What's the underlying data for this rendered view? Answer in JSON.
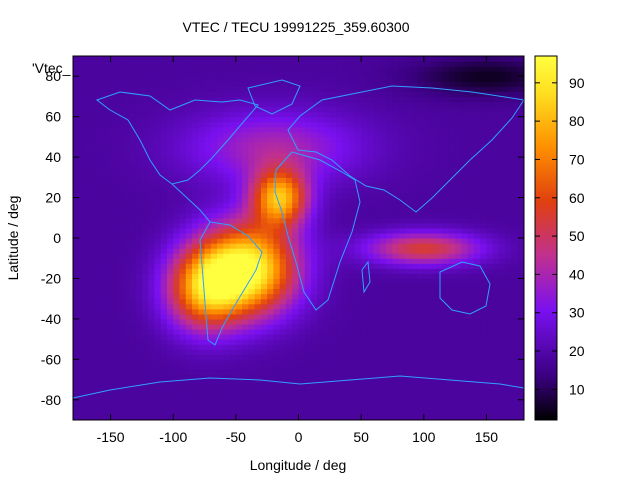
{
  "chart_data": {
    "type": "heatmap",
    "title": "VTEC / TECU 19991225_359.60300",
    "xlabel": "Longitude / deg",
    "ylabel": "Latitude / deg",
    "xlim": [
      -180,
      180
    ],
    "ylim": [
      -90,
      90
    ],
    "x_ticks": [
      -150,
      -100,
      -50,
      0,
      50,
      100,
      150
    ],
    "y_ticks": [
      -80,
      -60,
      -40,
      -20,
      0,
      20,
      40,
      60,
      80
    ],
    "colorbar": {
      "range": [
        2,
        97
      ],
      "ticks": [
        10,
        20,
        30,
        40,
        50,
        60,
        70,
        80,
        90
      ],
      "palette_stops": [
        "#000000",
        "#3a0080",
        "#7a10f0",
        "#c03090",
        "#e04010",
        "#ff9000",
        "#ffe020",
        "#ffff40"
      ]
    },
    "legend_label": "'Vtec_",
    "background_level": 18,
    "features": [
      {
        "name": "main crest (South Atlantic)",
        "lon": -40,
        "lat": -15,
        "value": 95
      },
      {
        "name": "northern crest (Atlantic)",
        "lon": -15,
        "lat": 20,
        "value": 78
      },
      {
        "name": "Pacific/Americas crest",
        "lon": -75,
        "lat": -25,
        "value": 72
      },
      {
        "name": "Indian Ocean band",
        "lon": 100,
        "lat": -5,
        "value": 55
      },
      {
        "name": "mid-latitude northern halo",
        "lon": -20,
        "lat": 45,
        "value": 40
      },
      {
        "name": "polar night (north)",
        "lon": 150,
        "lat": 80,
        "value": 5
      }
    ]
  }
}
